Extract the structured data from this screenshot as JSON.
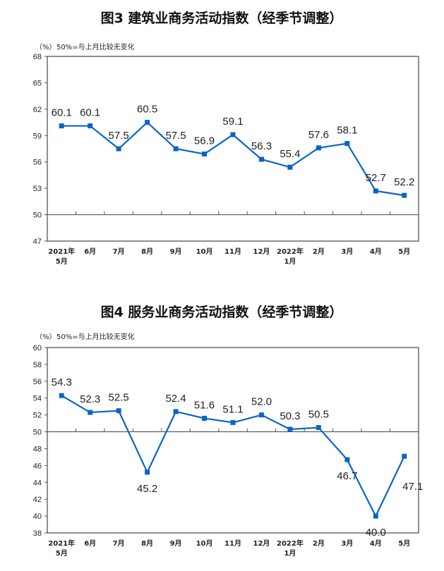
{
  "chart_data": [
    {
      "type": "line",
      "title": "图3  建筑业商务活动指数（经季节调整）",
      "unit": "（%）",
      "note": "50%=与上月比较无变化",
      "categories": [
        [
          "2021年",
          "5月"
        ],
        [
          "6月"
        ],
        [
          "7月"
        ],
        [
          "8月"
        ],
        [
          "9月"
        ],
        [
          "10月"
        ],
        [
          "11月"
        ],
        [
          "12月"
        ],
        [
          "2022年",
          "1月"
        ],
        [
          "2月"
        ],
        [
          "3月"
        ],
        [
          "4月"
        ],
        [
          "5月"
        ]
      ],
      "values": [
        60.1,
        60.1,
        57.5,
        60.5,
        57.5,
        56.9,
        59.1,
        56.3,
        55.4,
        57.6,
        58.1,
        52.7,
        52.2
      ],
      "value_labels": [
        "60.1",
        "60.1",
        "57.5",
        "60.5",
        "57.5",
        "56.9",
        "59.1",
        "56.3",
        "55.4",
        "57.6",
        "58.1",
        "52.7",
        "52.2"
      ],
      "ylim": [
        47,
        68
      ],
      "yticks": [
        47,
        50,
        53,
        56,
        59,
        62,
        65,
        68
      ],
      "reference_line": 50,
      "color": "#0a64c8"
    },
    {
      "type": "line",
      "title": "图4  服务业商务活动指数（经季节调整）",
      "unit": "（%）",
      "note": "50%=与上月比较无变化",
      "categories": [
        [
          "2021年",
          "5月"
        ],
        [
          "6月"
        ],
        [
          "7月"
        ],
        [
          "8月"
        ],
        [
          "9月"
        ],
        [
          "10月"
        ],
        [
          "11月"
        ],
        [
          "12月"
        ],
        [
          "2022年",
          "1月"
        ],
        [
          "2月"
        ],
        [
          "3月"
        ],
        [
          "4月"
        ],
        [
          "5月"
        ]
      ],
      "values": [
        54.3,
        52.3,
        52.5,
        45.2,
        52.4,
        51.6,
        51.1,
        52.0,
        50.3,
        50.5,
        46.7,
        40.0,
        47.1
      ],
      "value_labels": [
        "54.3",
        "52.3",
        "52.5",
        "45.2",
        "52.4",
        "51.6",
        "51.1",
        "52.0",
        "50.3",
        "50.5",
        "46.7",
        "40.0",
        "47.1"
      ],
      "ylim": [
        38,
        60
      ],
      "yticks": [
        38,
        40,
        42,
        44,
        46,
        48,
        50,
        52,
        54,
        56,
        58,
        60
      ],
      "reference_line": 50,
      "color": "#0a64c8"
    }
  ]
}
